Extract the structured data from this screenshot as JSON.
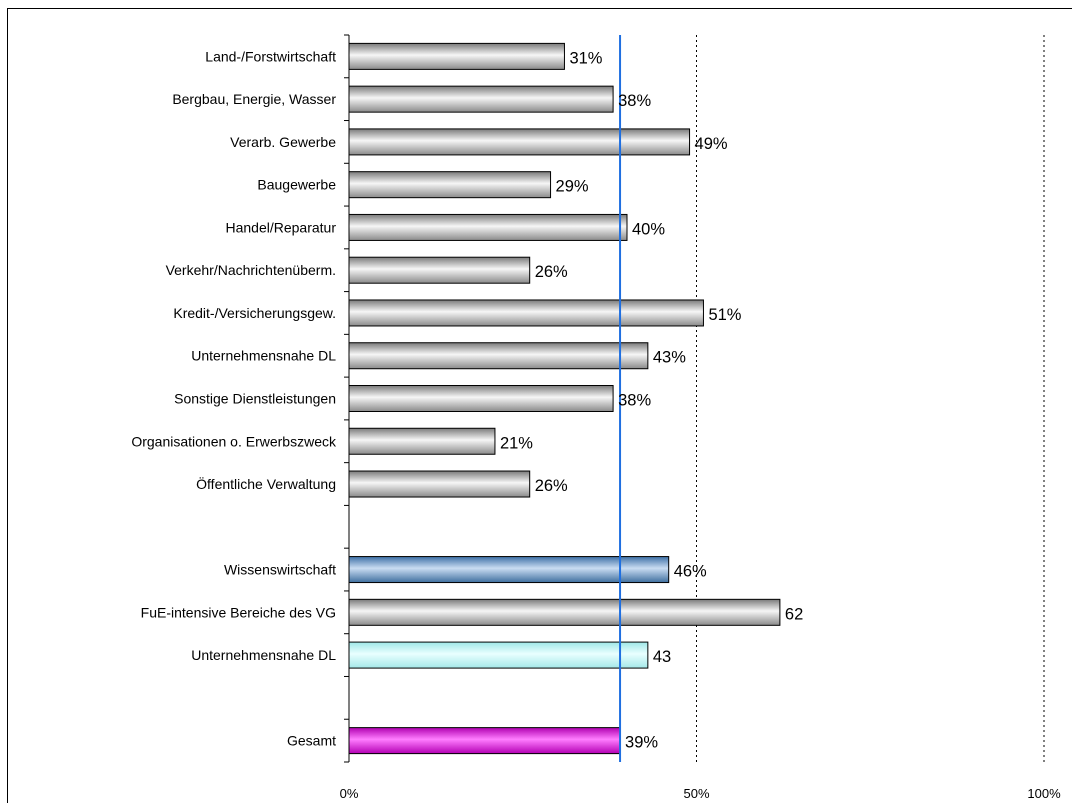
{
  "chart_data": {
    "type": "bar",
    "orientation": "horizontal",
    "title": "",
    "xlabel": "",
    "ylabel": "",
    "xlim": [
      0,
      100
    ],
    "xticks": [
      "0%",
      "50%",
      "100%"
    ],
    "reference_line": {
      "value": 39,
      "color": "#1f6fe0"
    },
    "categories": [
      "Land-/Forstwirtschaft",
      "Bergbau, Energie, Wasser",
      "Verarb. Gewerbe",
      "Baugewerbe",
      "Handel/Reparatur",
      "Verkehr/Nachrichtenüberm.",
      "Kredit-/Versicherungsgew.",
      "Unternehmensnahe DL",
      "Sonstige Dienstleistungen",
      "Organisationen o. Erwerbszweck",
      "Öffentliche Verwaltung",
      "",
      "Wissenswirtschaft",
      "FuE-intensive Bereiche des VG",
      "Unternehmensnahe DL",
      "",
      "Gesamt"
    ],
    "values": [
      31,
      38,
      49,
      29,
      40,
      26,
      51,
      43,
      38,
      21,
      26,
      null,
      46,
      62,
      43,
      null,
      39
    ],
    "value_labels": [
      "31%",
      "38%",
      "49%",
      "29%",
      "40%",
      "26%",
      "51%",
      "43%",
      "38%",
      "21%",
      "26%",
      "",
      "46%",
      "62",
      "43",
      "",
      "39%"
    ],
    "bar_styles": [
      "gray",
      "gray",
      "gray",
      "gray",
      "gray",
      "gray",
      "gray",
      "gray",
      "gray",
      "gray",
      "gray",
      "",
      "blue",
      "gray",
      "cyan",
      "",
      "magenta"
    ],
    "colors": {
      "gray": [
        "#7a7a7a",
        "#f6f6f6",
        "#8a8a8a"
      ],
      "blue": [
        "#3c6fa6",
        "#c9dcf2",
        "#3f6f9f"
      ],
      "cyan": [
        "#9fe7e7",
        "#e9ffff",
        "#a5e8e8"
      ],
      "magenta": [
        "#b000b0",
        "#ff7dff",
        "#b400b4"
      ]
    }
  }
}
